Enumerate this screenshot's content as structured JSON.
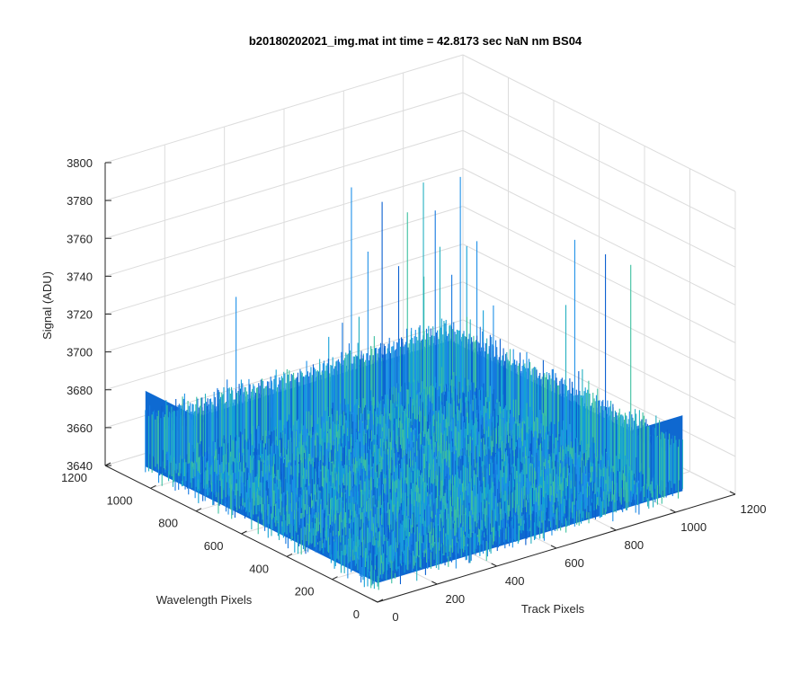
{
  "chart_data": {
    "type": "surface",
    "title": "b20180202021_img.mat int time = 42.8173 sec  NaN nm BS04",
    "xlabel": "Track Pixels",
    "ylabel": "Wavelength Pixels",
    "zlabel": "Signal (ADU)",
    "xlim": [
      0,
      1200
    ],
    "ylim": [
      0,
      1200
    ],
    "zlim": [
      3640,
      3800
    ],
    "x_ticks": [
      "0",
      "200",
      "400",
      "600",
      "800",
      "1000",
      "1200"
    ],
    "y_ticks": [
      "0",
      "200",
      "400",
      "600",
      "800",
      "1000",
      "1200"
    ],
    "z_ticks": [
      "3640",
      "3660",
      "3680",
      "3700",
      "3720",
      "3740",
      "3760",
      "3780",
      "3800"
    ],
    "grid": true,
    "surface": {
      "x_range": [
        1,
        1024
      ],
      "y_range": [
        1,
        1024
      ],
      "mean_signal": 3668,
      "noise_band": [
        3650,
        3690
      ],
      "occasional_spikes_up_to": 3770,
      "colormap": "parula",
      "colors": [
        "#0a5fd0",
        "#1478e0",
        "#1e90e8",
        "#12a0d8",
        "#25b0c0",
        "#3cc0a0"
      ]
    }
  }
}
